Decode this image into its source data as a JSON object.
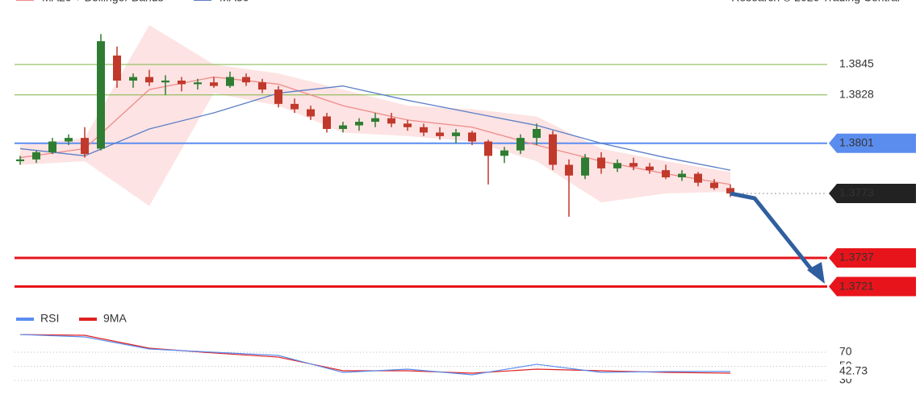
{
  "chart_data": [
    {
      "type": "candlestick",
      "source": "Research © 2020 Trading Central",
      "x": [
        0,
        1,
        2,
        3,
        4,
        5,
        6,
        7,
        8,
        9,
        10,
        11,
        12,
        13,
        14,
        15,
        16,
        17,
        18,
        19,
        20,
        21,
        22,
        23,
        24,
        25,
        26,
        27,
        28,
        29,
        30,
        31,
        32,
        33,
        34,
        35,
        36,
        37,
        38,
        39,
        40,
        41,
        42,
        43,
        44
      ],
      "open": [
        1.3791,
        1.3792,
        1.3796,
        1.3802,
        1.3804,
        1.3798,
        1.385,
        1.3836,
        1.3838,
        1.3835,
        1.3836,
        1.3834,
        1.3835,
        1.3833,
        1.3838,
        1.3835,
        1.3831,
        1.3823,
        1.382,
        1.3816,
        1.3809,
        1.3811,
        1.3813,
        1.3815,
        1.3812,
        1.381,
        1.3807,
        1.3805,
        1.3807,
        1.3802,
        1.3794,
        1.3797,
        1.3804,
        1.3806,
        1.3789,
        1.3783,
        1.3793,
        1.3787,
        1.379,
        1.3788,
        1.3786,
        1.3782,
        1.3784,
        1.3779,
        1.3776
      ],
      "high": [
        1.3794,
        1.3797,
        1.3804,
        1.3806,
        1.381,
        1.3862,
        1.3855,
        1.384,
        1.3842,
        1.3839,
        1.3838,
        1.3837,
        1.3838,
        1.3841,
        1.384,
        1.3837,
        1.3833,
        1.3826,
        1.3822,
        1.3818,
        1.3813,
        1.3815,
        1.3818,
        1.3818,
        1.3814,
        1.3812,
        1.381,
        1.3809,
        1.3808,
        1.3803,
        1.3799,
        1.3806,
        1.3812,
        1.3808,
        1.3792,
        1.3795,
        1.3796,
        1.3792,
        1.3793,
        1.379,
        1.3789,
        1.3786,
        1.3785,
        1.3781,
        1.3778
      ],
      "low": [
        1.3789,
        1.379,
        1.3795,
        1.38,
        1.3793,
        1.3797,
        1.3832,
        1.3832,
        1.3833,
        1.3828,
        1.383,
        1.3831,
        1.3832,
        1.3832,
        1.3833,
        1.3829,
        1.3821,
        1.3818,
        1.3814,
        1.3807,
        1.3807,
        1.3808,
        1.381,
        1.381,
        1.3808,
        1.3805,
        1.3803,
        1.3801,
        1.38,
        1.3778,
        1.379,
        1.3795,
        1.38,
        1.3786,
        1.376,
        1.3781,
        1.3784,
        1.3785,
        1.3786,
        1.3784,
        1.3781,
        1.378,
        1.3777,
        1.3775,
        1.3771
      ],
      "close": [
        1.3792,
        1.3796,
        1.3802,
        1.3804,
        1.3795,
        1.3858,
        1.3836,
        1.3838,
        1.3835,
        1.3836,
        1.3834,
        1.3835,
        1.3833,
        1.3838,
        1.3835,
        1.3831,
        1.3823,
        1.382,
        1.3816,
        1.3809,
        1.3811,
        1.3813,
        1.3815,
        1.3812,
        1.381,
        1.3807,
        1.3805,
        1.3807,
        1.3802,
        1.3794,
        1.3797,
        1.3804,
        1.3809,
        1.3789,
        1.3783,
        1.3793,
        1.3787,
        1.379,
        1.3788,
        1.3786,
        1.3782,
        1.3784,
        1.3779,
        1.3776,
        1.3773
      ],
      "up_color": "#2e7d32",
      "down_color": "#c0392b",
      "xlim": [
        0,
        44
      ],
      "ylim": [
        1.371,
        1.3881
      ],
      "series": [
        {
          "name": "MA20 + Bollinger Bands",
          "color": "#f08a8a",
          "band_color": "#fde3e3",
          "x": [
            0,
            4,
            8,
            12,
            16,
            20,
            24,
            28,
            32,
            36,
            40,
            44
          ],
          "values": [
            1.3793,
            1.3798,
            1.3831,
            1.3838,
            1.3834,
            1.3822,
            1.3814,
            1.381,
            1.38,
            1.3791,
            1.3784,
            1.3778
          ],
          "band_upper": [
            1.38,
            1.3804,
            1.3867,
            1.3845,
            1.384,
            1.3831,
            1.3822,
            1.382,
            1.3816,
            1.3798,
            1.3791,
            1.3785
          ],
          "band_lower": [
            1.3789,
            1.3791,
            1.3766,
            1.3829,
            1.3822,
            1.3807,
            1.3805,
            1.3802,
            1.3791,
            1.3768,
            1.3773,
            1.3774
          ]
        },
        {
          "name": "MA50",
          "color": "#5b7fc7",
          "x": [
            0,
            4,
            8,
            12,
            16,
            20,
            24,
            28,
            32,
            36,
            40,
            44
          ],
          "values": [
            1.3798,
            1.3794,
            1.3809,
            1.3818,
            1.3829,
            1.3833,
            1.3825,
            1.3818,
            1.3811,
            1.3801,
            1.3793,
            1.3786
          ]
        }
      ],
      "levels": [
        {
          "value": 1.3845,
          "color": "#7cb342",
          "boxed": false
        },
        {
          "value": 1.3828,
          "color": "#7cb342",
          "boxed": false
        },
        {
          "value": 1.3801,
          "color": "#5b8def",
          "boxed": true
        },
        {
          "value": 1.3737,
          "color": "#e8141b",
          "boxed": true
        },
        {
          "value": 1.3721,
          "color": "#e8141b",
          "boxed": true
        }
      ],
      "last_color": "#222222"
    },
    {
      "type": "line",
      "xlim": [
        0,
        44
      ],
      "ylim": [
        0,
        100
      ],
      "yticks": [
        30,
        50,
        70
      ],
      "series": [
        {
          "name": "RSI",
          "color": "#5b8def",
          "x": [
            0,
            4,
            8,
            12,
            16,
            20,
            24,
            28,
            32,
            36,
            40,
            44
          ],
          "values": [
            95.1,
            91.7,
            74.6,
            70,
            65.4,
            41.4,
            46,
            38,
            52.9,
            41.4,
            42.6,
            42.73
          ]
        },
        {
          "name": "9MA",
          "color": "#e02020",
          "x": [
            0,
            4,
            8,
            12,
            16,
            20,
            24,
            28,
            32,
            36,
            40,
            44
          ],
          "values": [
            95.1,
            94,
            75.7,
            68.9,
            63.1,
            43.7,
            43.7,
            40.3,
            46,
            43.7,
            41.4,
            40.3
          ]
        }
      ]
    }
  ]
}
